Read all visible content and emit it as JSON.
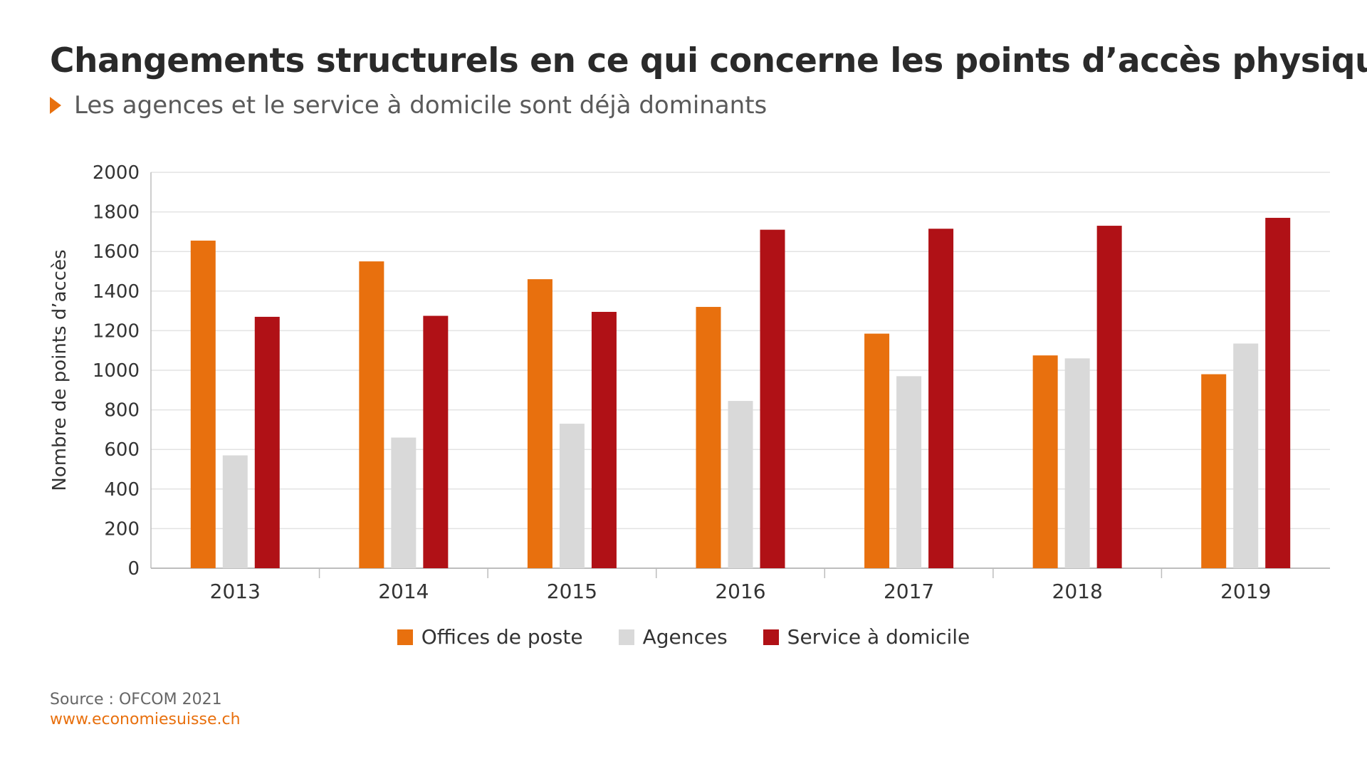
{
  "header": {
    "title": "Changements structurels en ce qui concerne les points d’accès physiques",
    "subtitle": "Les agences et le service à domicile sont déjà dominants"
  },
  "footer": {
    "source": "Source : OFCOM 2021",
    "website": "www.economiesuisse.ch"
  },
  "colors": {
    "accent": "#e8700e",
    "offices": "#e8700e",
    "agences": "#d9d9d9",
    "service": "#b01116",
    "grid": "#e3e3e3",
    "axis": "#bdbdbd"
  },
  "chart_data": {
    "type": "bar",
    "title": "",
    "xlabel": "",
    "ylabel": "Nombre de points d’accès",
    "ylim": [
      0,
      2000
    ],
    "yticks": [
      "0",
      "200",
      "400",
      "600",
      "800",
      "1000",
      "1200",
      "1400",
      "1600",
      "1800",
      "2000"
    ],
    "grid": true,
    "legend_position": "bottom",
    "categories": [
      "2013",
      "2014",
      "2015",
      "2016",
      "2017",
      "2018",
      "2019"
    ],
    "series": [
      {
        "name": "Offices de poste",
        "color": "#e8700e",
        "values": [
          1655,
          1550,
          1460,
          1320,
          1185,
          1075,
          980
        ]
      },
      {
        "name": "Agences",
        "color": "#d9d9d9",
        "values": [
          570,
          660,
          730,
          845,
          970,
          1060,
          1135
        ]
      },
      {
        "name": "Service à domicile",
        "color": "#b01116",
        "values": [
          1270,
          1275,
          1295,
          1710,
          1715,
          1730,
          1770
        ]
      }
    ]
  }
}
